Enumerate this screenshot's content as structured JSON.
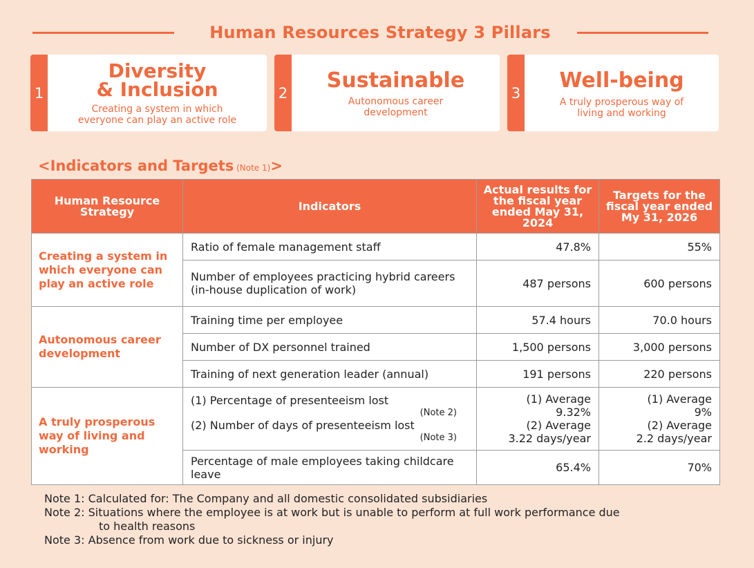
{
  "header": {
    "title": "Human Resources Strategy 3 Pillars"
  },
  "pillars": [
    {
      "num": "1",
      "title_line1": "Diversity",
      "title_line2": "& Inclusion",
      "sub_line1": "Creating a system in which",
      "sub_line2": "everyone can play an active role"
    },
    {
      "num": "2",
      "title": "Sustainable",
      "sub_line1": "Autonomous career",
      "sub_line2": "development"
    },
    {
      "num": "3",
      "title": "Well-being",
      "sub_line1": "A truly prosperous way of",
      "sub_line2": "living and working"
    }
  ],
  "section": {
    "title": "<Indicators and Targets",
    "note": " (Note 1)",
    "close": ">"
  },
  "table": {
    "headers": {
      "strategy": "Human Resource Strategy",
      "indicators": "Indicators",
      "actual": "Actual results for the fiscal year ended May 31, 2024",
      "targets": "Targets for the fiscal year ended My 31, 2026"
    },
    "groups": [
      {
        "strategy": "Creating a system in which everyone can play an active role",
        "rows": [
          {
            "indicator": "Ratio of female management staff",
            "actual": "47.8%",
            "target": "55%"
          },
          {
            "indicator": "Number of employees practicing hybrid careers (in-house duplication of work)",
            "actual": "487 persons",
            "target": "600 persons"
          }
        ]
      },
      {
        "strategy": "Autonomous career development",
        "rows": [
          {
            "indicator": "Training time per employee",
            "actual": "57.4 hours",
            "target": "70.0 hours"
          },
          {
            "indicator": "Number of DX personnel trained",
            "actual": "1,500 persons",
            "target": "3,000 persons"
          },
          {
            "indicator": "Training of next generation leader (annual)",
            "actual": "191 persons",
            "target": "220 persons"
          }
        ]
      },
      {
        "strategy": "A truly prosperous way of living and working",
        "presenteeism": {
          "line1": "(1)  Percentage of presenteeism lost",
          "note1": "(Note 2)",
          "line2": "(2) Number of days of presenteeism lost",
          "note2": "(Note 3)",
          "actual1": "(1)  Average",
          "actual2": "9.32%",
          "actual3": "(2) Average",
          "actual4": "3.22 days/year",
          "target1": "(1)  Average",
          "target2": "9%",
          "target3": "(2) Average",
          "target4": "2.2 days/year"
        },
        "rows": [
          {
            "indicator": "Percentage of male employees taking childcare leave",
            "actual": "65.4%",
            "target": "70%"
          }
        ]
      }
    ]
  },
  "notes": {
    "note1": "Note 1:  Calculated for: The Company and all domestic consolidated subsidiaries",
    "note2": "Note 2:  Situations where the employee is at work but is unable to perform at full work performance due",
    "note2b": "to health reasons",
    "note3": "Note 3:  Absence from work due to sickness or injury"
  },
  "colors": {
    "accent": "#f06a3e",
    "header_bg": "#f26a45",
    "page_bg": "#fbe3d4"
  }
}
